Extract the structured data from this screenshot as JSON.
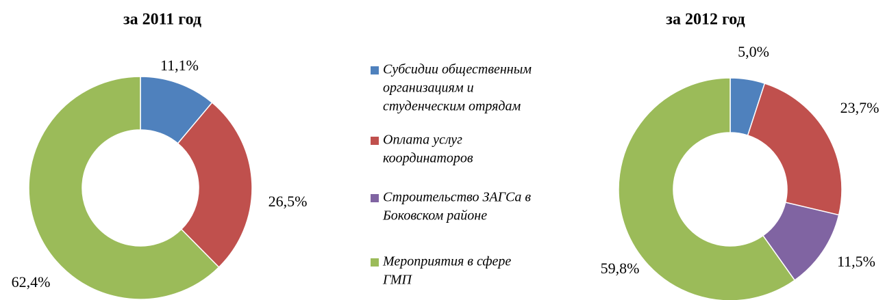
{
  "chart_data": [
    {
      "type": "donut",
      "title": "за 2011 год",
      "values": [
        11.1,
        26.5,
        62.4
      ],
      "value_labels": [
        "11,1%",
        "26,5%",
        "62,4%"
      ],
      "colors": [
        "#4f81bd",
        "#c0504d",
        "#9bbb59"
      ]
    },
    {
      "type": "donut",
      "title": "за 2012 год",
      "values": [
        5.0,
        23.7,
        11.5,
        59.8
      ],
      "value_labels": [
        "5,0%",
        "23,7%",
        "11,5%",
        "59,8%"
      ],
      "colors": [
        "#4f81bd",
        "#c0504d",
        "#8064a2",
        "#9bbb59"
      ]
    }
  ],
  "legend": [
    {
      "name": [
        "Субсидии общественным",
        "организациям и",
        "студенческим отрядам"
      ],
      "color": "#4f81bd"
    },
    {
      "name": [
        "Оплата услуг",
        "координаторов"
      ],
      "color": "#c0504d"
    },
    {
      "name": [
        "Строительство ЗАГСа в",
        "Боковском районе"
      ],
      "color": "#8064a2"
    },
    {
      "name": [
        "Мероприятия в сфере",
        "ГМП"
      ],
      "color": "#9bbb59"
    }
  ]
}
